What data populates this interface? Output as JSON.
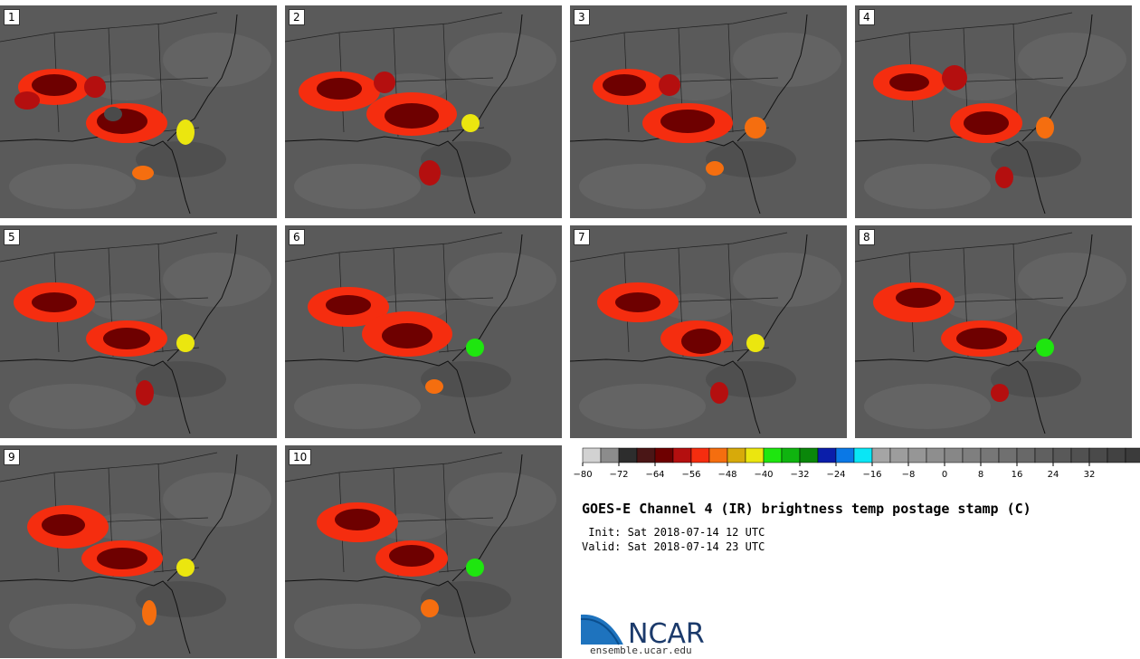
{
  "panels": [
    {
      "label": "1"
    },
    {
      "label": "2"
    },
    {
      "label": "3"
    },
    {
      "label": "4"
    },
    {
      "label": "5"
    },
    {
      "label": "6"
    },
    {
      "label": "7"
    },
    {
      "label": "8"
    },
    {
      "label": "9"
    },
    {
      "label": "10"
    }
  ],
  "colorbar": {
    "colors": [
      "#d2d2d2",
      "#8c8c8c",
      "#2d2d2d",
      "#4a1616",
      "#6e0000",
      "#b40f0f",
      "#f52d0f",
      "#f56e0f",
      "#d7aa0a",
      "#ebe60f",
      "#1ee60f",
      "#0fb40f",
      "#0a870a",
      "#0a1eaa",
      "#0a78e6",
      "#0ae6f5",
      "#a5a5a5",
      "#9d9d9d",
      "#969696",
      "#8e8e8e",
      "#878787",
      "#7f7f7f",
      "#777777",
      "#707070",
      "#686868",
      "#606060",
      "#595959",
      "#515151",
      "#4a4a4a",
      "#424242",
      "#3b3b3b",
      "#333333",
      "#2b2b2b",
      "#242424"
    ],
    "tick_labels": [
      "−80",
      "−72",
      "−64",
      "−56",
      "−48",
      "−40",
      "−32",
      "−24",
      "−16",
      "−8",
      "0",
      "8",
      "16",
      "24",
      "32"
    ]
  },
  "title": "GOES-E Channel 4 (IR) brightness temp postage stamp (C)",
  "init_line": " Init: Sat 2018-07-14 12 UTC",
  "valid_line": "Valid: Sat 2018-07-14 23 UTC",
  "logo_text": "NCAR",
  "url": "ensemble.ucar.edu"
}
